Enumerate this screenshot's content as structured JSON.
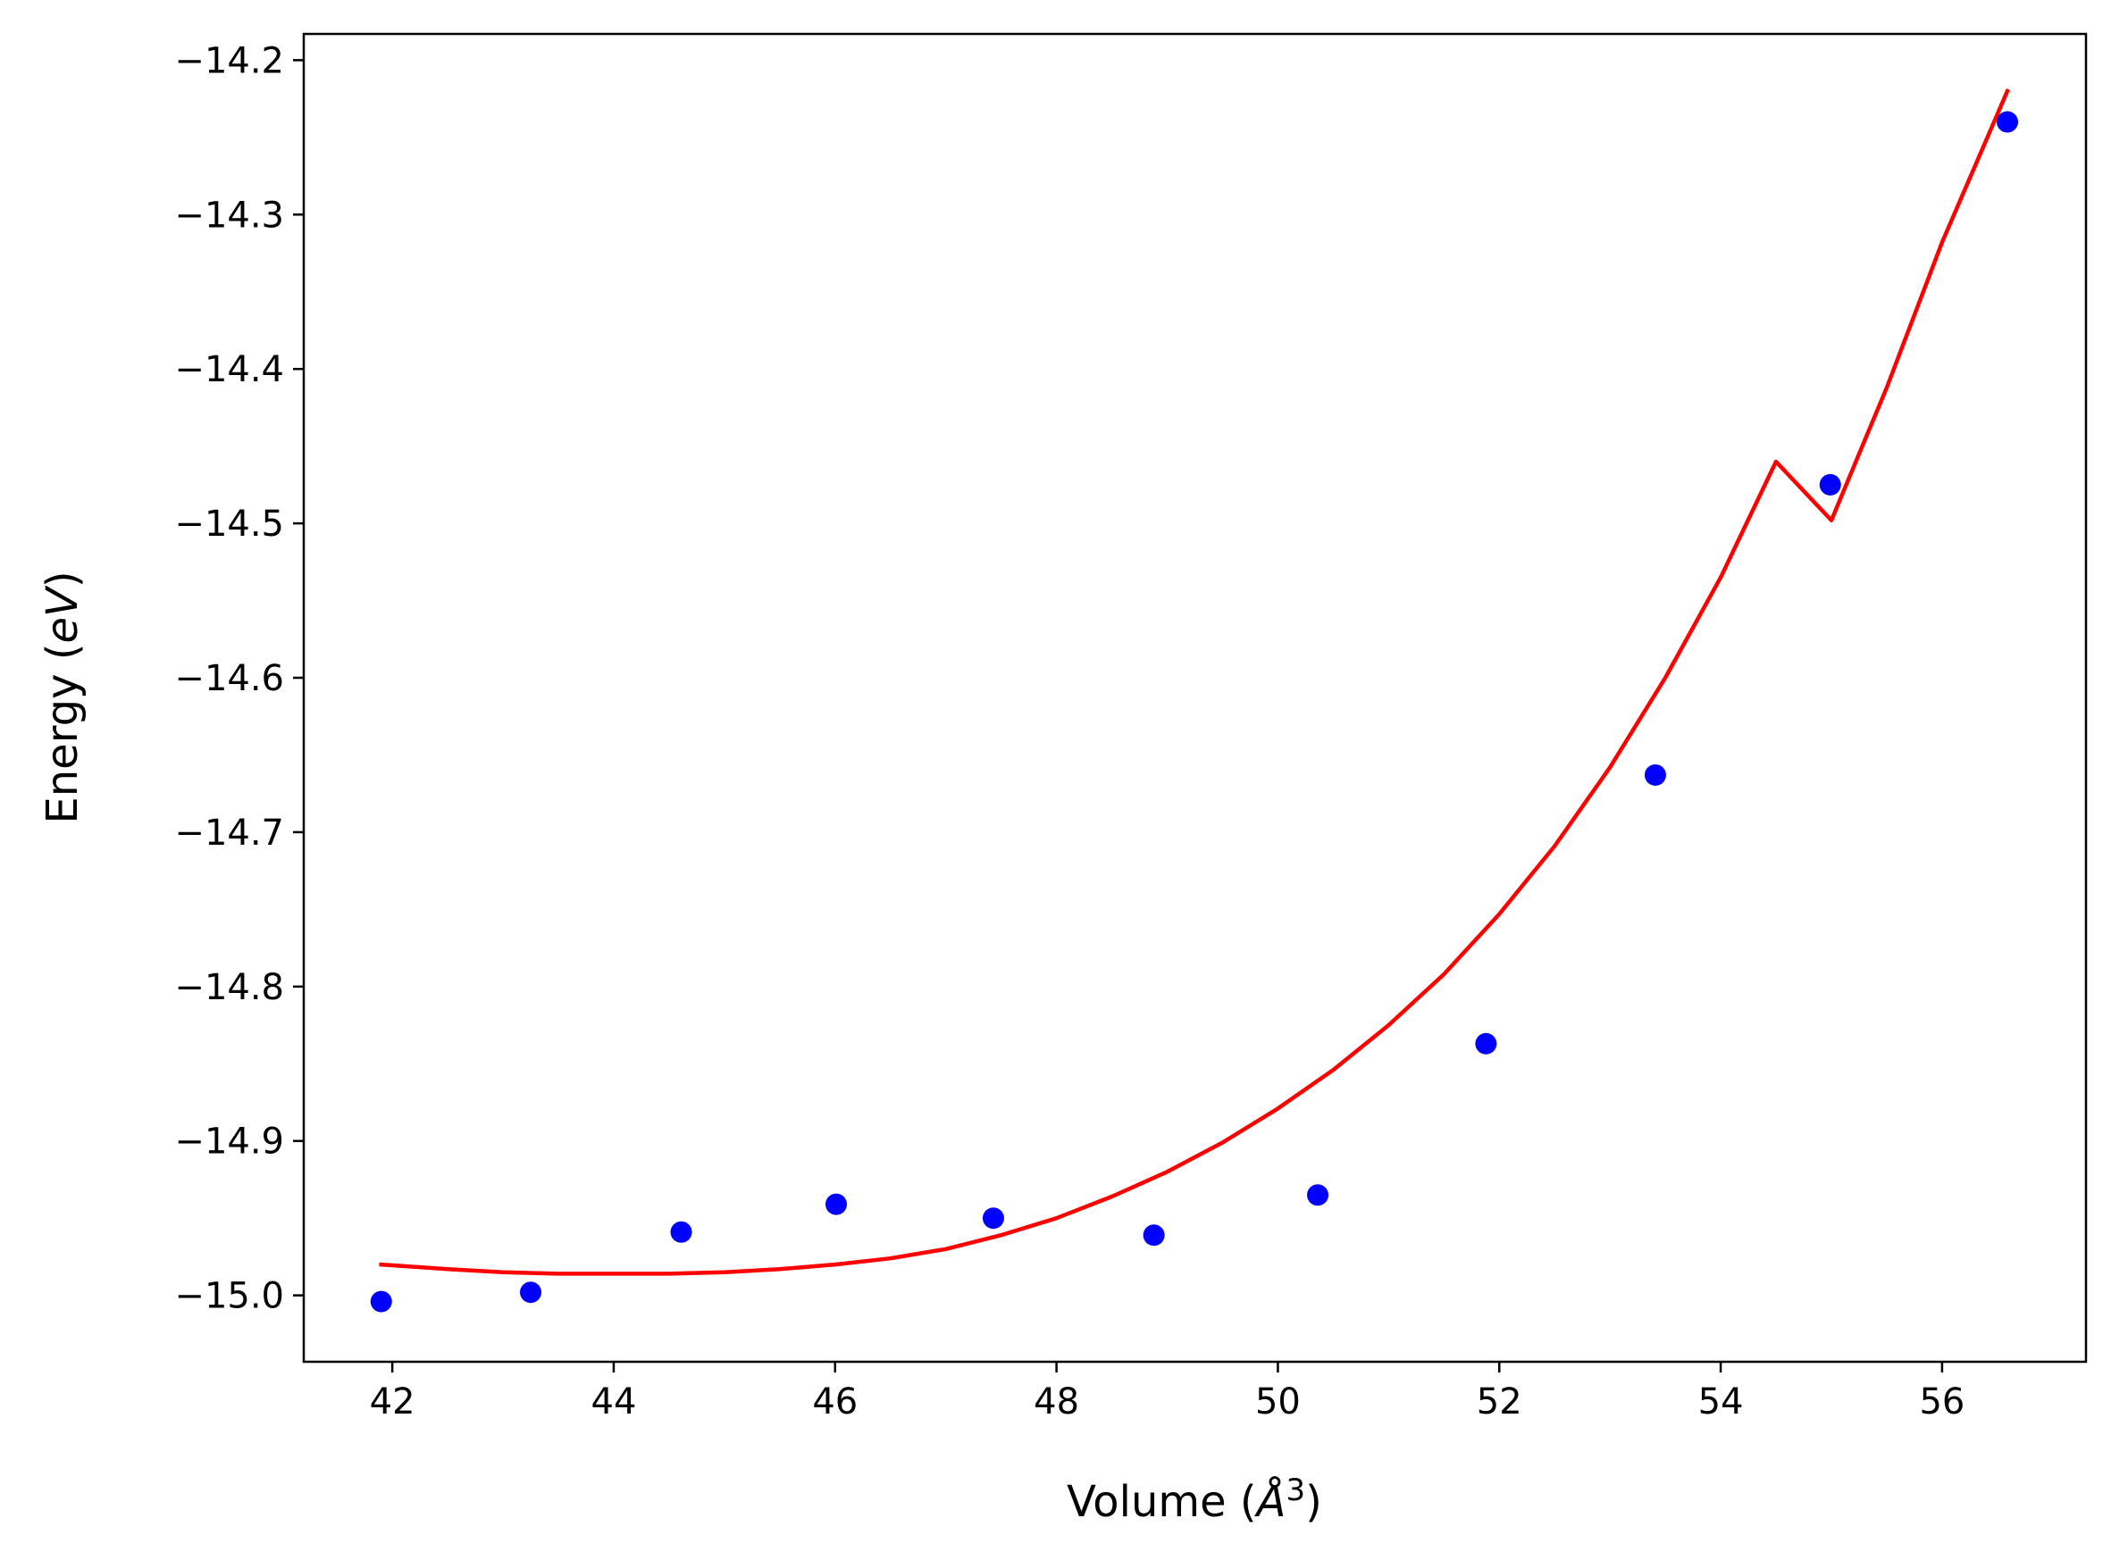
{
  "chart_data": {
    "type": "scatter",
    "xlabel": {
      "prefix": "Volume (",
      "var": "Å",
      "sup": "3",
      "suffix": ")"
    },
    "ylabel": {
      "prefix": "Energy (",
      "var": "eV",
      "suffix": ")"
    },
    "xlim": [
      41.2,
      57.3
    ],
    "ylim": [
      -15.043,
      -14.183
    ],
    "xticks": [
      42,
      44,
      46,
      48,
      50,
      52,
      54,
      56
    ],
    "xtick_labels": [
      "42",
      "44",
      "46",
      "48",
      "50",
      "52",
      "54",
      "56"
    ],
    "yticks": [
      -15.0,
      -14.9,
      -14.8,
      -14.7,
      -14.6,
      -14.5,
      -14.4,
      -14.3,
      -14.2
    ],
    "ytick_labels": [
      "−15.0",
      "−14.9",
      "−14.8",
      "−14.7",
      "−14.6",
      "−14.5",
      "−14.4",
      "−14.3",
      "−14.2"
    ],
    "grid": false,
    "series": [
      {
        "kind": "points",
        "color": "#0000ff",
        "x": [
          41.9,
          43.25,
          44.61,
          46.01,
          47.43,
          48.88,
          50.36,
          51.88,
          53.41,
          54.99,
          56.59
        ],
        "y": [
          -15.004,
          -14.998,
          -14.959,
          -14.941,
          -14.95,
          -14.961,
          -14.935,
          -14.837,
          -14.663,
          -14.475,
          -14.24
        ]
      },
      {
        "kind": "curve",
        "color": "#ff0000",
        "x": [
          41.9,
          42.5,
          43.0,
          43.5,
          44.0,
          44.5,
          45.0,
          45.5,
          46.0,
          46.5,
          47.0,
          47.5,
          48.0,
          48.5,
          49.0,
          49.5,
          50.0,
          50.5,
          51.0,
          51.5,
          52.0,
          52.5,
          53.0,
          53.5,
          54.0,
          54.5,
          55.0,
          55.5,
          56.0,
          56.59
        ],
        "y": [
          -14.98,
          -14.983,
          -14.985,
          -14.986,
          -14.986,
          -14.986,
          -14.985,
          -14.983,
          -14.98,
          -14.976,
          -14.97,
          -14.961,
          -14.95,
          -14.936,
          -14.92,
          -14.901,
          -14.879,
          -14.854,
          -14.825,
          -14.792,
          -14.753,
          -14.709,
          -14.658,
          -14.6,
          -14.535,
          -14.46,
          -14.498,
          -14.412,
          -14.318,
          -14.22
        ]
      }
    ]
  }
}
